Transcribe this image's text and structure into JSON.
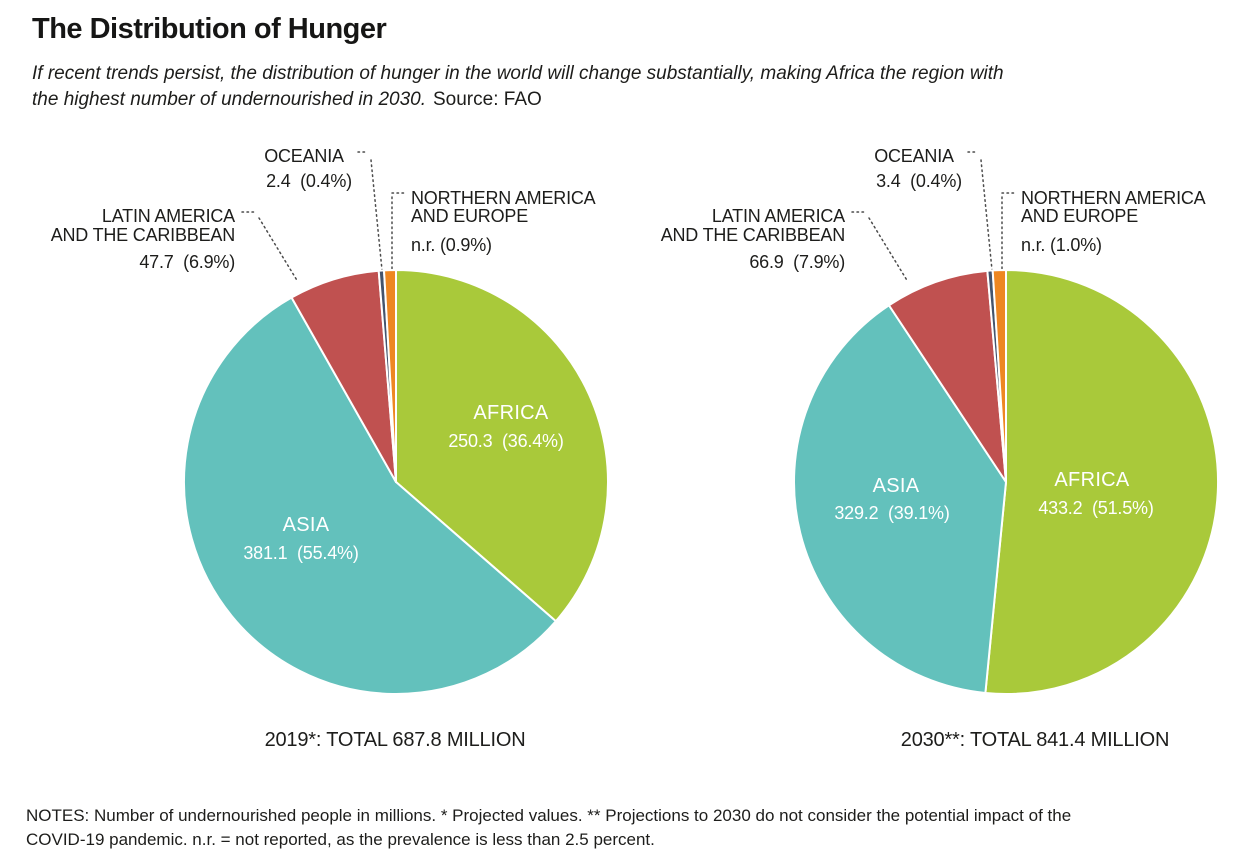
{
  "header": {
    "title": "The Distribution of Hunger",
    "subtitle_line1": "If recent trends persist, the distribution of hunger in the world will change substantially, making Africa the region with",
    "subtitle_line2": "the highest number of undernourished in 2030.",
    "source": "Source: FAO"
  },
  "notes": {
    "line1": "NOTES: Number of undernourished people in millions. * Projected values. ** Projections to 2030 do not consider the potential impact of the",
    "line2": "COVID-19 pandemic. n.r. = not reported, as the prevalence is less than 2.5 percent."
  },
  "colors": {
    "africa": "#a9c93a",
    "asia": "#63c1bc",
    "lac": "#c05150",
    "oceania": "#44546d",
    "nae": "#ee8722",
    "leader": "#4c4c4c",
    "text": "#1d1d1b",
    "inside_label": "#ffffff"
  },
  "chart_data": [
    {
      "type": "pie",
      "title": "2019*: TOTAL 687.8 MILLION",
      "year_label": "2019*",
      "total_million": 687.8,
      "units": "millions of undernourished people",
      "slices": [
        {
          "region": "AFRICA",
          "name_lines": [
            "AFRICA"
          ],
          "value_million": 250.3,
          "pct": 36.4,
          "label": "250.3  (36.4%)",
          "color_key": "africa",
          "label_inside": true
        },
        {
          "region": "ASIA",
          "name_lines": [
            "ASIA"
          ],
          "value_million": 381.1,
          "pct": 55.4,
          "label": "381.1  (55.4%)",
          "color_key": "asia",
          "label_inside": true
        },
        {
          "region": "LATIN AMERICA AND THE CARIBBEAN",
          "name_lines": [
            "LATIN AMERICA",
            "AND THE CARIBBEAN"
          ],
          "value_million": 47.7,
          "pct": 6.9,
          "label": "47.7  (6.9%)",
          "color_key": "lac",
          "label_inside": false
        },
        {
          "region": "OCEANIA",
          "name_lines": [
            "OCEANIA"
          ],
          "value_million": 2.4,
          "pct": 0.4,
          "label": "2.4  (0.4%)",
          "color_key": "oceania",
          "label_inside": false
        },
        {
          "region": "NORTHERN AMERICA AND EUROPE",
          "name_lines": [
            "NORTHERN AMERICA",
            "AND EUROPE"
          ],
          "value_million": "n.r.",
          "pct": 0.9,
          "label": "n.r. (0.9%)",
          "color_key": "nae",
          "label_inside": false
        }
      ]
    },
    {
      "type": "pie",
      "title": "2030**: TOTAL 841.4 MILLION",
      "year_label": "2030**",
      "total_million": 841.4,
      "units": "millions of undernourished people",
      "slices": [
        {
          "region": "AFRICA",
          "name_lines": [
            "AFRICA"
          ],
          "value_million": 433.2,
          "pct": 51.5,
          "label": "433.2  (51.5%)",
          "color_key": "africa",
          "label_inside": true
        },
        {
          "region": "ASIA",
          "name_lines": [
            "ASIA"
          ],
          "value_million": 329.2,
          "pct": 39.1,
          "label": "329.2  (39.1%)",
          "color_key": "asia",
          "label_inside": true
        },
        {
          "region": "LATIN AMERICA AND THE CARIBBEAN",
          "name_lines": [
            "LATIN AMERICA",
            "AND THE CARIBBEAN"
          ],
          "value_million": 66.9,
          "pct": 7.9,
          "label": "66.9  (7.9%)",
          "color_key": "lac",
          "label_inside": false
        },
        {
          "region": "OCEANIA",
          "name_lines": [
            "OCEANIA"
          ],
          "value_million": 3.4,
          "pct": 0.4,
          "label": "3.4  (0.4%)",
          "color_key": "oceania",
          "label_inside": false
        },
        {
          "region": "NORTHERN AMERICA AND EUROPE",
          "name_lines": [
            "NORTHERN AMERICA",
            "AND EUROPE"
          ],
          "value_million": "n.r.",
          "pct": 1.0,
          "label": "n.r. (1.0%)",
          "color_key": "nae",
          "label_inside": false
        }
      ]
    }
  ]
}
